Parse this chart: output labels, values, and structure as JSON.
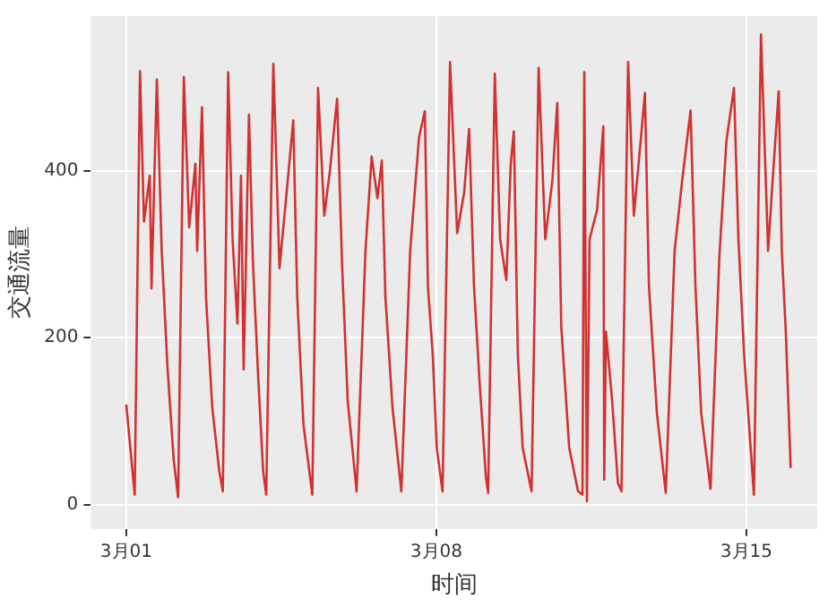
{
  "chart_data": {
    "type": "line",
    "xlabel": "时间",
    "ylabel": "交通流量",
    "x": [
      "--03-01T00:00",
      "--03-01T04:34",
      "--03-01T07:26",
      "--03-01T09:36",
      "--03-01T12:43",
      "--03-01T13:41",
      "--03-01T16:34",
      "--03-01T19:12",
      "--03-01T22:19",
      "--03-02T01:41",
      "--03-02T04:05",
      "--03-02T07:12",
      "--03-02T10:05",
      "--03-02T13:26",
      "--03-02T14:24",
      "--03-02T17:02",
      "--03-02T19:12",
      "--03-02T22:34",
      "--03-03T02:24",
      "--03-03T04:19",
      "--03-03T07:12",
      "--03-03T09:36",
      "--03-03T12:14",
      "--03-03T14:10",
      "--03-03T15:36",
      "--03-03T18:29",
      "--03-03T20:38",
      "--03-03T23:31",
      "--03-04T02:10",
      "--03-04T03:50",
      "--03-04T07:41",
      "--03-04T11:02",
      "--03-04T14:53",
      "--03-04T18:29",
      "--03-04T20:38",
      "--03-05T00:00",
      "--03-05T04:48",
      "--03-05T07:55",
      "--03-05T11:17",
      "--03-05T14:24",
      "--03-05T18:14",
      "--03-05T20:53",
      "--03-06T00:00",
      "--03-06T04:48",
      "--03-06T09:36",
      "--03-06T12:58",
      "--03-06T16:05",
      "--03-06T18:29",
      "--03-06T20:24",
      "--03-07T00:14",
      "--03-07T05:02",
      "--03-07T09:50",
      "--03-07T14:38",
      "--03-07T17:46",
      "--03-07T19:26",
      "--03-07T22:05",
      "--03-08T00:14",
      "--03-08T03:22",
      "--03-08T07:26",
      "--03-08T11:17",
      "--03-08T15:07",
      "--03-08T17:46",
      "--03-08T20:24",
      "--03-08T23:31",
      "--03-09T02:53",
      "--03-09T04:05",
      "--03-09T07:41",
      "--03-09T10:34",
      "--03-09T13:55",
      "--03-09T16:19",
      "--03-09T18:00",
      "--03-09T20:10",
      "--03-09T22:48",
      "--03-10T03:36",
      "--03-10T07:26",
      "--03-10T11:02",
      "--03-10T14:53",
      "--03-10T17:31",
      "--03-10T19:41",
      "--03-11T00:00",
      "--03-11T04:48",
      "--03-11T07:12",
      "--03-11T08:10",
      "--03-11T09:36",
      "--03-11T11:02",
      "--03-11T15:07",
      "--03-11T18:29",
      "--03-11T18:58",
      "--03-11T19:55",
      "--03-11T23:17",
      "--03-12T02:24",
      "--03-12T04:19",
      "--03-12T07:55",
      "--03-12T11:02",
      "--03-12T14:10",
      "--03-12T17:02",
      "--03-12T19:12",
      "--03-12T23:31",
      "--03-13T04:19",
      "--03-13T09:07",
      "--03-13T13:12",
      "--03-13T17:46",
      "--03-13T20:24",
      "--03-13T23:31",
      "--03-14T04:34",
      "--03-14T09:22",
      "--03-14T13:12",
      "--03-14T17:17",
      "--03-14T19:41",
      "--03-14T22:48",
      "--03-15T04:05",
      "--03-15T07:55",
      "--03-15T11:46",
      "--03-15T14:24",
      "--03-15T17:31",
      "--03-15T19:12",
      "--03-15T21:22",
      "--03-16T00:00"
    ],
    "series": [
      {
        "color": "#d03232",
        "values": [
          120,
          12,
          519,
          339,
          394,
          259,
          509,
          304,
          165,
          54,
          9,
          512,
          332,
          408,
          304,
          476,
          249,
          117,
          40,
          16,
          518,
          318,
          217,
          394,
          162,
          467,
          290,
          151,
          40,
          12,
          528,
          283,
          374,
          460,
          249,
          96,
          12,
          499,
          346,
          401,
          486,
          290,
          124,
          16,
          304,
          417,
          367,
          412,
          249,
          117,
          16,
          304,
          440,
          471,
          262,
          179,
          68,
          16,
          530,
          325,
          374,
          450,
          262,
          144,
          33,
          14,
          516,
          318,
          269,
          408,
          447,
          179,
          68,
          16,
          523,
          318,
          388,
          481,
          214,
          68,
          16,
          12,
          518,
          4,
          318,
          353,
          453,
          30,
          207,
          124,
          26,
          16,
          530,
          346,
          422,
          493,
          262,
          110,
          14,
          304,
          388,
          472,
          262,
          110,
          19,
          297,
          436,
          499,
          318,
          179,
          12,
          563,
          304,
          394,
          495,
          304,
          207,
          44
        ]
      }
    ],
    "xlim": [
      "--02-28T04:48",
      "--03-16T14:24"
    ],
    "xticks": [
      {
        "value": "--03-01",
        "label": "3月01"
      },
      {
        "value": "--03-08",
        "label": "3月08"
      },
      {
        "value": "--03-15",
        "label": "3月15"
      }
    ],
    "ylim": [
      -29,
      585
    ],
    "yticks": [
      0,
      200,
      400
    ],
    "grid": true,
    "legend": false
  }
}
